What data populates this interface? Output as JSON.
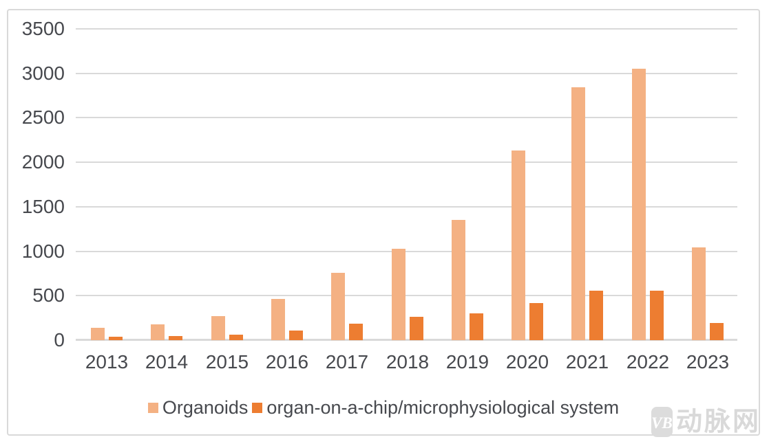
{
  "chart_data": {
    "type": "bar",
    "title": "",
    "categories": [
      "2013",
      "2014",
      "2015",
      "2016",
      "2017",
      "2018",
      "2019",
      "2020",
      "2021",
      "2022",
      "2023"
    ],
    "series": [
      {
        "name": "Organoids",
        "color": "#f4b183",
        "values": [
          140,
          180,
          270,
          460,
          760,
          1030,
          1350,
          2130,
          2840,
          3050,
          1040
        ]
      },
      {
        "name": "organ-on-a-chip/microphysiological system",
        "color": "#ed7d31",
        "values": [
          40,
          45,
          60,
          105,
          185,
          265,
          300,
          420,
          560,
          555,
          195
        ]
      }
    ],
    "xlabel": "",
    "ylabel": "",
    "ylim": [
      0,
      3500
    ],
    "yticks": [
      0,
      500,
      1000,
      1500,
      2000,
      2500,
      3000,
      3500
    ],
    "grid": true,
    "legend_position": "bottom"
  },
  "watermark": {
    "logo_text": "VB",
    "text": "动脉网",
    "color": "#d9d9d9"
  },
  "style": {
    "background": "#ffffff",
    "frame_border_color": "#d9d9d9",
    "grid_color": "#d9d9d9",
    "axis_text_color": "#47494e"
  }
}
